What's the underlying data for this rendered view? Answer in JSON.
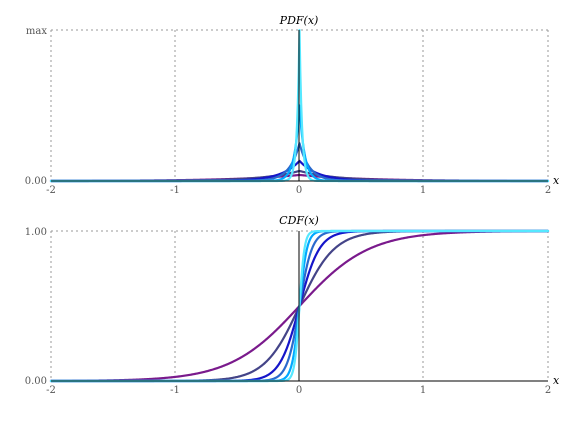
{
  "chart_data": [
    {
      "type": "line",
      "title": "PDF(x)",
      "xlabel": "x",
      "ylabel": "",
      "xlim": [
        -2,
        2
      ],
      "x_ticks": [
        "-2",
        "-1",
        "0",
        "1",
        "2"
      ],
      "y_ticks": [
        "0.00",
        "max"
      ],
      "grid": true,
      "legend": "none",
      "function": "laplace_pdf",
      "series": [
        {
          "scale": 0.02,
          "color": "#55e8ff"
        },
        {
          "scale": 0.04,
          "color": "#00a8ff"
        },
        {
          "scale": 0.08,
          "color": "#2a6acd"
        },
        {
          "scale": 0.15,
          "color": "#1515c9"
        },
        {
          "scale": 0.3,
          "color": "#444488"
        },
        {
          "scale": 0.5,
          "color": "#7a1a8c"
        }
      ]
    },
    {
      "type": "line",
      "title": "CDF(x)",
      "xlabel": "x",
      "ylabel": "",
      "xlim": [
        -2,
        2
      ],
      "ylim": [
        0,
        1
      ],
      "x_ticks": [
        "-2",
        "-1",
        "0",
        "1",
        "2"
      ],
      "y_ticks": [
        "0.00",
        "1.00"
      ],
      "grid": true,
      "legend": "none",
      "function": "logistic_cdf",
      "series": [
        {
          "scale": 0.02,
          "color": "#55e8ff"
        },
        {
          "scale": 0.03,
          "color": "#00a8ff"
        },
        {
          "scale": 0.05,
          "color": "#2a6acd"
        },
        {
          "scale": 0.08,
          "color": "#1515c9"
        },
        {
          "scale": 0.14,
          "color": "#444488"
        },
        {
          "scale": 0.28,
          "color": "#7a1a8c"
        }
      ]
    }
  ]
}
